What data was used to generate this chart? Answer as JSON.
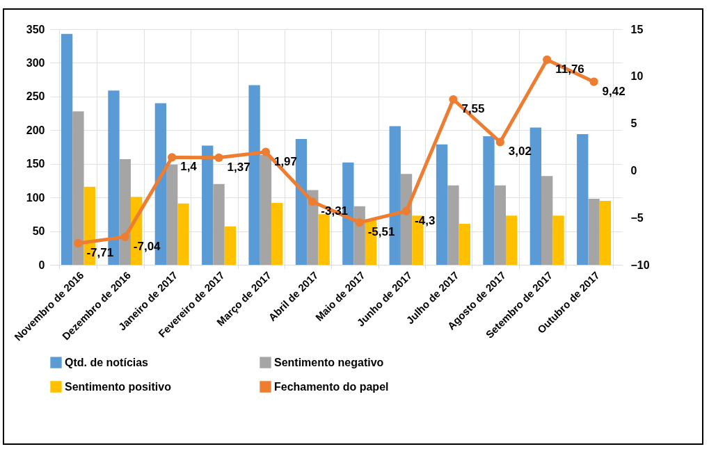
{
  "chart_data": {
    "type": "bar",
    "categories": [
      "Novembro de 2016",
      "Dezembro de 2016",
      "Janeiro de 2017",
      "Fevereiro de 2017",
      "Março de 2017",
      "Abril de 2017",
      "Maio de 2017",
      "Junho de 2017",
      "Julho de 2017",
      "Agosto de 2017",
      "Setembro de 2017",
      "Outubro de 2017"
    ],
    "series": [
      {
        "name": "Qtd. de notícias",
        "color": "#5b9bd5",
        "values": [
          343,
          259,
          240,
          177,
          267,
          187,
          152,
          206,
          179,
          191,
          204,
          194
        ]
      },
      {
        "name": "Sentimento  negativo",
        "color": "#a5a5a5",
        "values": [
          228,
          157,
          149,
          120,
          163,
          111,
          87,
          135,
          118,
          118,
          132,
          98
        ]
      },
      {
        "name": "Sentimento  positivo",
        "color": "#ffc000",
        "values": [
          116,
          101,
          91,
          57,
          92,
          75,
          66,
          73,
          61,
          73,
          73,
          95
        ]
      },
      {
        "name": "Fechamento  do papel",
        "type": "line",
        "axis": "y2",
        "color": "#ed7d31",
        "marker": "circle",
        "values": [
          -7.71,
          -7.04,
          1.4,
          1.37,
          1.97,
          -3.31,
          -5.51,
          -4.3,
          7.55,
          3.02,
          11.76,
          9.42
        ],
        "value_labels": [
          "-7,71",
          "-7,04",
          "1,4",
          "1,37",
          "1,97",
          "-3,31",
          "-5,51",
          "-4,3",
          "7,55",
          "3,02",
          "11,76",
          "9,42"
        ]
      }
    ],
    "ylim": [
      0,
      350
    ],
    "yticks": [
      0,
      50,
      100,
      150,
      200,
      250,
      300,
      350
    ],
    "y2lim": [
      -10,
      15
    ],
    "y2ticks": [
      -10,
      -5,
      0,
      5,
      10,
      15
    ],
    "grid": true,
    "legend": "bottom"
  }
}
